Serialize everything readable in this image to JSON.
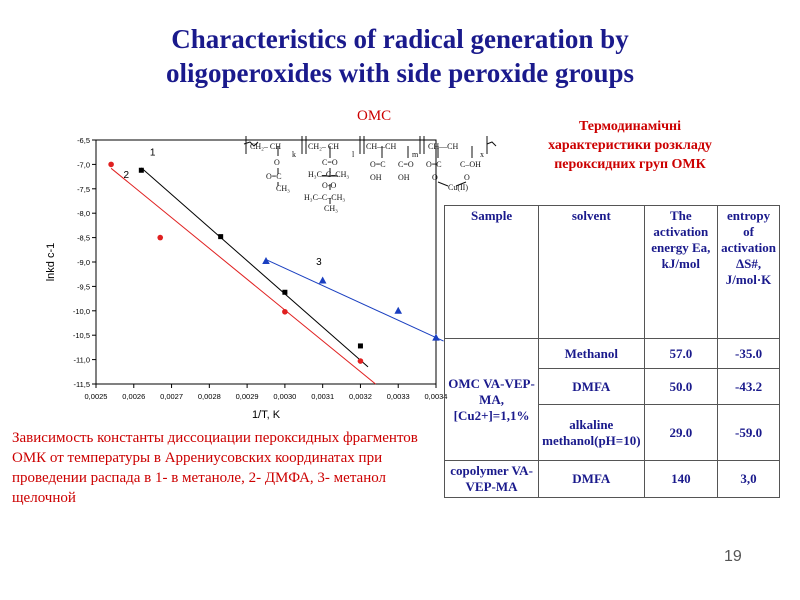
{
  "slide": {
    "title_line1": "Characteristics of radical generation by",
    "title_line2": "oligoperoxides with side peroxide groups",
    "formula_label": "OMC",
    "formula_sub": "Cu(II)",
    "right_title_1": "Термодинамічні",
    "right_title_2": "характеристики розкладу",
    "right_title_3": "пероксидних груп ОМК",
    "caption": "Зависимость константы диссоциации пероксидных фрагментов ОМК от температуры в Аррениусовских координатах при проведении распада в 1- в метаноле, 2- ДМФА, 3- метанол щелочной",
    "page_number": "19"
  },
  "table": {
    "headers": {
      "sample": "Sample",
      "solvent": "solvent",
      "activation": "The activation energy Ea, kJ/mol",
      "entropy": "entropy of activation ΔS#, J/mol·K"
    },
    "omc_label": "OMC VA-VEP-MA, [Cu2+]=1,1%",
    "copolymer_label": "copolymer VA-VEP-MA",
    "rows": [
      {
        "solvent": "Methanol",
        "ea": "57.0",
        "ds": "-35.0"
      },
      {
        "solvent": "DMFA",
        "ea": "50.0",
        "ds": "-43.2"
      },
      {
        "solvent": "alkaline methanol(pH=10)",
        "ea": "29.0",
        "ds": "-59.0"
      },
      {
        "solvent": "DMFA",
        "ea": "140",
        "ds": "3,0"
      }
    ]
  },
  "colors": {
    "series1": "#000000",
    "series2": "#e02020",
    "series3": "#1a3fc0",
    "title": "#1a1a8c",
    "accent": "#cc0000"
  },
  "chart_data": {
    "type": "scatter",
    "xlabel": "1/T, K",
    "ylabel": "lnkd c-1",
    "xlim": [
      0.0025,
      0.0034
    ],
    "ylim": [
      -11.5,
      -6.5
    ],
    "xticks": [
      0.0025,
      0.0026,
      0.0027,
      0.0028,
      0.0029,
      0.003,
      0.0031,
      0.0032,
      0.0033,
      0.0034
    ],
    "xtick_labels": [
      "0,0025",
      "0,0026",
      "0,0027",
      "0,0028",
      "0,0029",
      "0,0030",
      "0,0031",
      "0,0032",
      "0,0033",
      "0,0034"
    ],
    "yticks": [
      -6.5,
      -7.0,
      -7.5,
      -8.0,
      -8.5,
      -9.0,
      -9.5,
      -10.0,
      -10.5,
      -11.0,
      -11.5
    ],
    "ytick_labels": [
      "-6,5",
      "-7,0",
      "-7,5",
      "-8,0",
      "-8,5",
      "-9,0",
      "-9,5",
      "-10,0",
      "-10,5",
      "-11,0",
      "-11,5"
    ],
    "series": [
      {
        "label": "1",
        "marker": "square",
        "color": "#000000",
        "x": [
          0.00262,
          0.00283,
          0.003,
          0.0032
        ],
        "y": [
          -7.12,
          -8.48,
          -9.62,
          -10.72
        ],
        "fit": [
          [
            0.00262,
            -7.07
          ],
          [
            0.00322,
            -11.15
          ]
        ]
      },
      {
        "label": "2",
        "marker": "circle",
        "color": "#e02020",
        "x": [
          0.00254,
          0.00267,
          0.003,
          0.0032
        ],
        "y": [
          -7.0,
          -8.5,
          -10.02,
          -11.03
        ],
        "fit": [
          [
            0.00254,
            -7.08
          ],
          [
            0.00324,
            -11.5
          ]
        ]
      },
      {
        "label": "3",
        "marker": "triangle",
        "color": "#1a3fc0",
        "x": [
          0.00295,
          0.0031,
          0.0033,
          0.0034
        ],
        "y": [
          -8.98,
          -9.38,
          -10.0,
          -10.55
        ],
        "fit": [
          [
            0.00295,
            -8.95
          ],
          [
            0.00342,
            -10.62
          ]
        ]
      }
    ]
  }
}
